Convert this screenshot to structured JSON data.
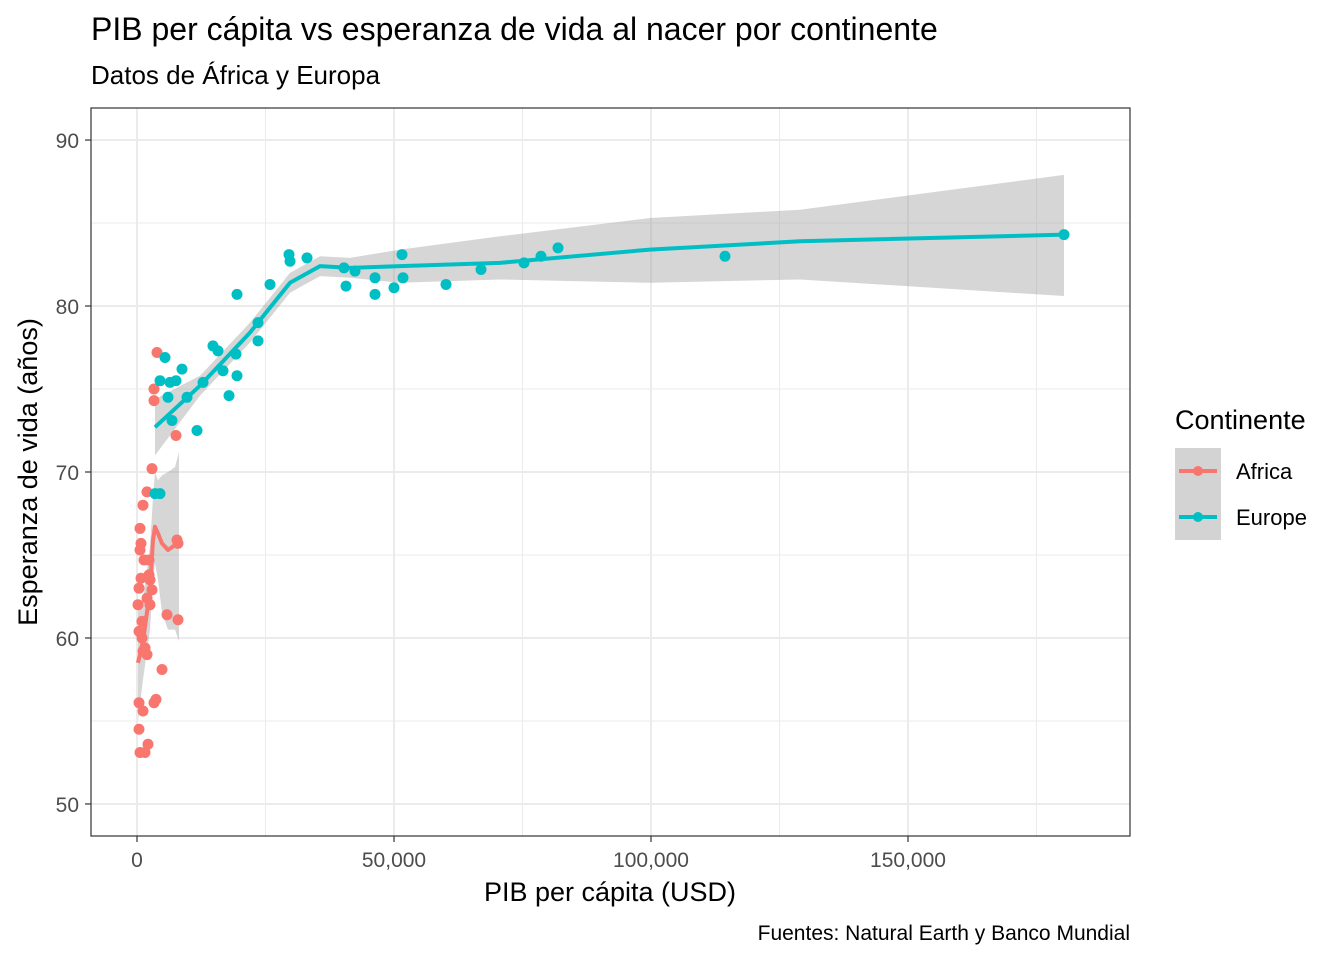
{
  "chart_data": {
    "type": "scatter",
    "title": "PIB per cápita vs esperanza de vida al nacer por continente",
    "subtitle": "Datos de África y Europa",
    "xlabel": "PIB per cápita  (USD)",
    "ylabel": "Esperanza de vida (años)",
    "caption": "Fuentes: Natural Earth y Banco Mundial",
    "xlim": [
      -8950,
      193190
    ],
    "ylim": [
      48.07,
      91.93
    ],
    "xticks": [
      0,
      50000,
      100000,
      150000
    ],
    "xtick_labels": [
      "0",
      "50,000",
      "100,000",
      "150,000"
    ],
    "yticks": [
      50,
      60,
      70,
      80,
      90
    ],
    "ytick_labels": [
      "50",
      "60",
      "70",
      "80",
      "90"
    ],
    "grid": true,
    "legend": {
      "title": "Continente",
      "position": "right"
    },
    "series": [
      {
        "name": "Africa",
        "color": "#F8766D",
        "points": [
          [
            3891,
            77.2
          ],
          [
            3307,
            75.0
          ],
          [
            3307,
            74.3
          ],
          [
            7588,
            72.2
          ],
          [
            2918,
            70.2
          ],
          [
            1946,
            68.8
          ],
          [
            1167,
            68.0
          ],
          [
            584,
            66.6
          ],
          [
            584,
            65.3
          ],
          [
            778,
            65.7
          ],
          [
            1362,
            64.7
          ],
          [
            195,
            62.0
          ],
          [
            778,
            63.6
          ],
          [
            389,
            63.0
          ],
          [
            2918,
            62.9
          ],
          [
            2529,
            62.0
          ],
          [
            973,
            61.0
          ],
          [
            389,
            60.4
          ],
          [
            973,
            60.0
          ],
          [
            1167,
            59.2
          ],
          [
            1946,
            59.0
          ],
          [
            4864,
            58.1
          ],
          [
            3696,
            56.3
          ],
          [
            3307,
            56.1
          ],
          [
            389,
            56.1
          ],
          [
            1167,
            55.6
          ],
          [
            389,
            54.5
          ],
          [
            2140,
            53.6
          ],
          [
            584,
            53.1
          ],
          [
            1556,
            53.1
          ],
          [
            5837,
            61.4
          ],
          [
            7977,
            61.1
          ],
          [
            7782,
            65.9
          ],
          [
            7977,
            65.7
          ],
          [
            2335,
            63.8
          ],
          [
            1946,
            62.4
          ],
          [
            2529,
            63.5
          ],
          [
            1556,
            59.4
          ],
          [
            2335,
            64.7
          ]
        ],
        "smooth": {
          "x": [
            195,
            1167,
            2529,
            3113,
            3502,
            4086,
            4864,
            6031,
            7393,
            8171
          ],
          "y": [
            58.5,
            59.8,
            62.9,
            65.9,
            66.7,
            66.3,
            65.7,
            65.3,
            65.6,
            65.9
          ],
          "lower": [
            55,
            57.5,
            60.5,
            63.5,
            64.5,
            63.5,
            61.5,
            60.5,
            60.5,
            59.8
          ],
          "upper": [
            62,
            62.3,
            65.5,
            68.5,
            70.0,
            69.5,
            69.8,
            70.0,
            70.3,
            71.2
          ]
        }
      },
      {
        "name": "Europe",
        "color": "#00BFC4",
        "points": [
          [
            4475,
            75.5
          ],
          [
            5447,
            76.9
          ],
          [
            6031,
            74.5
          ],
          [
            6420,
            75.4
          ],
          [
            7588,
            75.5
          ],
          [
            8755,
            76.2
          ],
          [
            6809,
            73.1
          ],
          [
            9728,
            74.5
          ],
          [
            11673,
            72.5
          ],
          [
            12840,
            75.4
          ],
          [
            14786,
            77.6
          ],
          [
            15759,
            77.3
          ],
          [
            16732,
            76.1
          ],
          [
            17899,
            74.6
          ],
          [
            19261,
            77.1
          ],
          [
            19455,
            75.8
          ],
          [
            19455,
            80.7
          ],
          [
            23541,
            79.0
          ],
          [
            23541,
            77.9
          ],
          [
            25875,
            81.3
          ],
          [
            29572,
            83.1
          ],
          [
            29767,
            82.7
          ],
          [
            33074,
            82.9
          ],
          [
            40272,
            82.3
          ],
          [
            40661,
            81.2
          ],
          [
            42412,
            82.1
          ],
          [
            46304,
            81.7
          ],
          [
            46304,
            80.7
          ],
          [
            50000,
            81.1
          ],
          [
            51556,
            83.1
          ],
          [
            51751,
            81.7
          ],
          [
            60117,
            81.3
          ],
          [
            66926,
            82.2
          ],
          [
            75292,
            82.6
          ],
          [
            78599,
            83.0
          ],
          [
            81907,
            83.5
          ],
          [
            114397,
            83.0
          ],
          [
            180350,
            84.3
          ],
          [
            3502,
            68.7
          ],
          [
            4475,
            68.7
          ]
        ],
        "smooth": {
          "x": [
            3502,
            12257,
            21984,
            29767,
            35603,
            41440,
            51167,
            70623,
            99805,
            128988,
            180350
          ],
          "y": [
            72.7,
            75.2,
            78.4,
            81.4,
            82.4,
            82.3,
            82.4,
            82.6,
            83.4,
            83.9,
            84.3
          ],
          "lower": [
            71.0,
            74.6,
            77.8,
            80.8,
            81.8,
            81.7,
            81.4,
            81.6,
            81.4,
            81.6,
            80.6
          ],
          "upper": [
            74.4,
            75.8,
            79.0,
            82.0,
            83.0,
            82.9,
            83.4,
            84.2,
            85.3,
            85.8,
            87.9
          ]
        }
      }
    ]
  }
}
